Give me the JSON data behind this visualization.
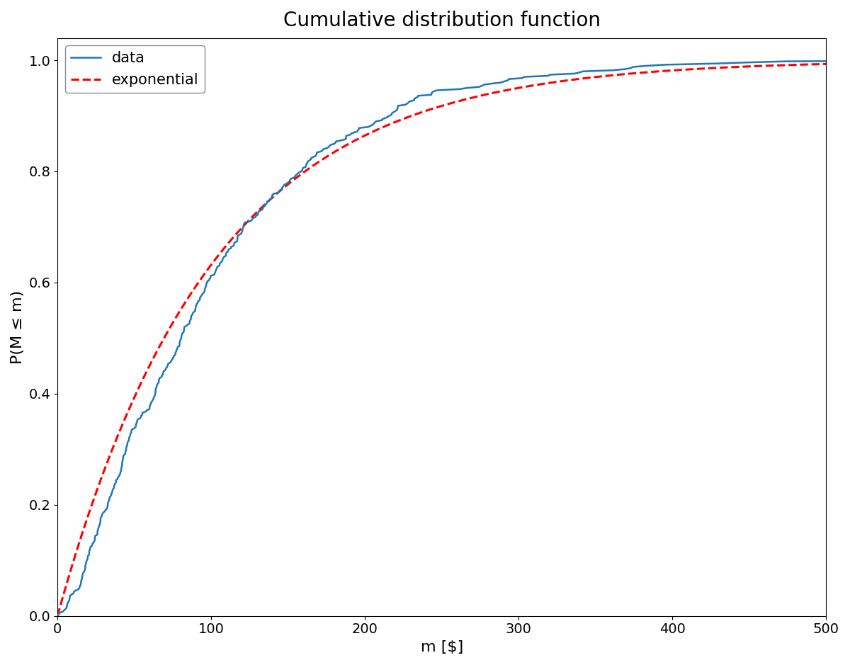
{
  "title": "Cumulative distribution function",
  "xlabel": "m [$]",
  "ylabel": "P(M ≤ m)",
  "xlim": [
    0,
    500
  ],
  "ylim": [
    0.0,
    1.04
  ],
  "legend_data": "data",
  "legend_exp": "exponential",
  "exp_mean": 100.0,
  "data_color": "#1f77b4",
  "exp_color": "red",
  "data_linewidth": 1.8,
  "exp_linewidth": 2.2,
  "title_fontsize": 20,
  "label_fontsize": 16,
  "tick_fontsize": 14,
  "legend_fontsize": 15,
  "seed": 12,
  "n_agents": 500,
  "gamma_shape": 1.5,
  "gamma_scale": 67.0,
  "figsize": [
    12.0,
    9.39
  ],
  "dpi": 100
}
